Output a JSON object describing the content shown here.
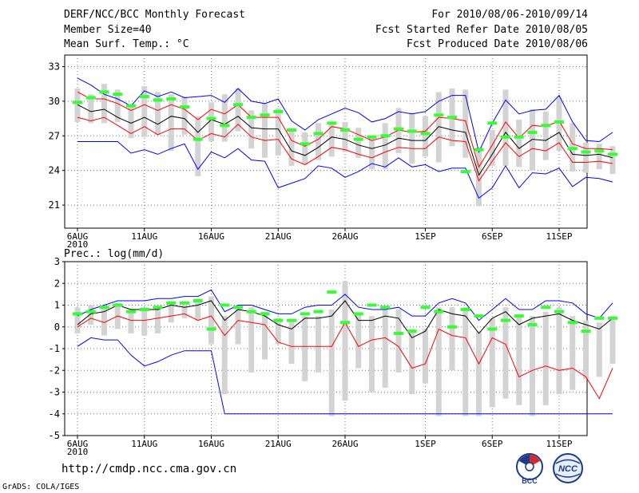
{
  "header": {
    "title": "DERF/NCC/BCC Monthly Forecast",
    "member_size": "Member Size=40",
    "variable": "Mean Surf. Temp.: °C",
    "forecast_period": "For 2010/08/06-2010/09/14",
    "start_date": "Fcst Started Refer Date 2010/08/05",
    "produced_date": "Fcst Produced Date 2010/08/06"
  },
  "footer": {
    "url": "http://cmdp.ncc.cma.gov.cn",
    "credit": "GrADS: COLA/IGES",
    "logo_bcc": "BCC",
    "logo_ncc": "NCC"
  },
  "colors": {
    "envelope": "#0000ff",
    "percentile": "#ff0000",
    "mean": "#000000",
    "box": "#d3d3d3",
    "observed": "#33ff33"
  },
  "chart_data": [
    {
      "type": "line",
      "title": "Mean Surf. Temp.: °C",
      "x_tick_labels": [
        "6AUG\n2010",
        "11AUG",
        "16AUG",
        "21AUG",
        "26AUG",
        "1SEP",
        "6SEP",
        "11SEP"
      ],
      "x_tick_days": [
        1,
        6,
        11,
        16,
        21,
        27,
        32,
        37
      ],
      "x_range": [
        1,
        40
      ],
      "ylim": [
        19,
        34
      ],
      "y_ticks": [
        21,
        24,
        27,
        30,
        33
      ],
      "grid": true,
      "series": [
        {
          "name": "max",
          "values": [
            32,
            31.4,
            30.6,
            30.2,
            29.6,
            30.9,
            30.4,
            30.8,
            30.3,
            30.4,
            30.5,
            29.9,
            31.1,
            30,
            29.8,
            30.2,
            28.3,
            27.5,
            28.4,
            28.9,
            29.4,
            29,
            28.2,
            28.5,
            29.1,
            28.9,
            29.1,
            30,
            30.5,
            30.5,
            25.6,
            28.1,
            30.1,
            28.9,
            29.2,
            29.3,
            30.5,
            28.2,
            26.6,
            26.5,
            27.3
          ]
        },
        {
          "name": "p90",
          "values": [
            30.8,
            30.2,
            30.2,
            29.8,
            29.2,
            29.7,
            29.2,
            29.7,
            29.3,
            28.4,
            29.3,
            28.9,
            29.7,
            28.6,
            28.6,
            28.6,
            26.6,
            26.1,
            26.7,
            27.8,
            27.6,
            27.1,
            26.6,
            26.9,
            27.5,
            27.3,
            27.4,
            28.6,
            28.5,
            28.3,
            24.3,
            26.2,
            28.2,
            26.8,
            27.9,
            27.8,
            28.3,
            26.3,
            25.9,
            25.9,
            25.8
          ]
        },
        {
          "name": "mean",
          "values": [
            29.7,
            29.1,
            29.3,
            28.6,
            28.1,
            28.6,
            28,
            28.7,
            28.5,
            27.3,
            28.4,
            28,
            28.7,
            27.7,
            27.6,
            27.6,
            25.7,
            25.3,
            26,
            26.9,
            26.7,
            26.2,
            25.9,
            26.2,
            26.8,
            26.6,
            26.6,
            27.8,
            27.5,
            27.3,
            23.6,
            25.4,
            27.3,
            25.9,
            26.7,
            26.6,
            27.3,
            25.4,
            25.3,
            25.4,
            25.1
          ]
        },
        {
          "name": "p10",
          "values": [
            28.6,
            28.3,
            28.6,
            27.9,
            27.2,
            27.8,
            27.1,
            27.6,
            27.6,
            26.6,
            27.2,
            26.9,
            28,
            26.9,
            26.6,
            26.7,
            25,
            24.5,
            25.2,
            26,
            25.8,
            25.4,
            25.1,
            25.6,
            26,
            25.9,
            25.9,
            26.9,
            26.6,
            26.5,
            23.1,
            24.8,
            26.4,
            25.2,
            25.9,
            25.7,
            26.4,
            24.7,
            24.7,
            24.8,
            24.6
          ]
        },
        {
          "name": "min",
          "values": [
            26.5,
            26.5,
            26.5,
            26.5,
            25.5,
            25.8,
            25.4,
            25.9,
            26.3,
            24.1,
            25.6,
            25.1,
            25.9,
            24.9,
            24.8,
            22.5,
            22.9,
            23.3,
            24.4,
            24.2,
            23.4,
            23.9,
            24.6,
            24.3,
            25.1,
            24.3,
            24.5,
            23.9,
            24.2,
            24.2,
            21.6,
            22.5,
            24.4,
            22.5,
            23.8,
            23.7,
            24.2,
            22.6,
            23.4,
            23.3,
            23
          ]
        },
        {
          "name": "box_high",
          "values": [
            31.1,
            30.6,
            31.5,
            31,
            29.6,
            31.3,
            30.8,
            30.6,
            30.4,
            28.7,
            29.9,
            30.6,
            31.1,
            29.2,
            29.8,
            29.4,
            27.4,
            27.3,
            28.1,
            28.2,
            28.2,
            27.7,
            26.9,
            28.1,
            29.4,
            29,
            28.7,
            30.8,
            31.1,
            31,
            26,
            27.5,
            31,
            28.4,
            29.3,
            29.1,
            30.3,
            28.1,
            26.4,
            26.3,
            26.1
          ]
        },
        {
          "name": "box_low",
          "values": [
            28.2,
            28.1,
            28.1,
            28.2,
            26.8,
            26.9,
            27.1,
            25.7,
            27.1,
            23.5,
            26.5,
            26.5,
            27.4,
            25.9,
            25.1,
            25.3,
            24.4,
            24.5,
            24.9,
            25.2,
            25.6,
            25.1,
            24.1,
            24.1,
            25.5,
            24.6,
            25.2,
            24.7,
            26.1,
            25.1,
            20.9,
            24.4,
            24.4,
            24.3,
            24,
            24.9,
            25.7,
            23.9,
            23.8,
            24.1,
            23.7
          ]
        },
        {
          "name": "observed",
          "values": [
            29.9,
            30.3,
            30.8,
            30.6,
            29.6,
            30.4,
            30.1,
            30.2,
            29.5,
            26.7,
            28.5,
            27.9,
            29.7,
            28.6,
            28.8,
            29.1,
            27.5,
            26.3,
            27.2,
            28.1,
            27.5,
            26.7,
            26.9,
            27,
            27.6,
            27.4,
            27.2,
            28.8,
            28.6,
            23.9,
            25.8,
            28.1,
            26.9,
            26.9,
            27.3,
            27.9,
            28.2,
            25.9,
            25.6,
            25.7,
            25.4
          ]
        }
      ]
    },
    {
      "type": "line",
      "title": "Prec.: log(mm/d)",
      "x_tick_labels": [
        "6AUG\n2010",
        "11AUG",
        "16AUG",
        "21AUG",
        "26AUG",
        "1SEP",
        "6SEP",
        "11SEP"
      ],
      "x_tick_days": [
        1,
        6,
        11,
        16,
        21,
        27,
        32,
        37
      ],
      "x_range": [
        1,
        40
      ],
      "ylim": [
        -5,
        3
      ],
      "y_ticks": [
        -5,
        -4,
        -3,
        -2,
        -1,
        0,
        1,
        2,
        3
      ],
      "grid": true,
      "series": [
        {
          "name": "max",
          "values": [
            0.5,
            0.8,
            1,
            1.2,
            1.2,
            1.2,
            1.3,
            1.3,
            1.4,
            1.4,
            1.7,
            0.7,
            1,
            1,
            0.8,
            0.6,
            0.6,
            0.9,
            1,
            1,
            1.5,
            0.9,
            0.8,
            0.8,
            0.9,
            0.5,
            0.5,
            1.1,
            1.3,
            1.1,
            0.3,
            0.8,
            1.3,
            0.8,
            0.8,
            1.2,
            1.2,
            1.1,
            0.6,
            0.4,
            1.1
          ]
        },
        {
          "name": "mean",
          "values": [
            0.1,
            0.6,
            0.7,
            1,
            0.8,
            0.8,
            0.8,
            1,
            0.9,
            1,
            1.2,
            0.3,
            0.8,
            0.7,
            0.5,
            0.1,
            -0.1,
            0.4,
            0.4,
            0.5,
            1.2,
            0.3,
            0.3,
            0.5,
            0.4,
            -0.5,
            -0.2,
            0.8,
            0.6,
            0.5,
            -0.3,
            0.4,
            0.7,
            0.1,
            0.4,
            0.5,
            0.6,
            0.3,
            0.1,
            -0.1,
            0.4
          ]
        },
        {
          "name": "p10",
          "values": [
            0,
            0.4,
            0.2,
            0.5,
            0.3,
            0.3,
            0.4,
            0.5,
            0.6,
            0.3,
            0.5,
            -0.4,
            0.3,
            0.2,
            0.1,
            -0.7,
            -0.9,
            -0.9,
            -0.9,
            -0.9,
            0.2,
            -0.9,
            -0.6,
            -0.5,
            -0.9,
            -1.9,
            -1.7,
            -0.1,
            -0.4,
            -0.5,
            -1.7,
            -0.5,
            -0.8,
            -2.3,
            -2,
            -1.8,
            -2,
            -1.9,
            -2.3,
            -3.3,
            -1.9
          ]
        },
        {
          "name": "min",
          "values": [
            -0.9,
            -0.5,
            -0.6,
            -0.6,
            -1.3,
            -1.8,
            -1.6,
            -1.3,
            -1.1,
            -1.1,
            -1.1,
            -4,
            -4,
            -4,
            -4,
            -4,
            -4,
            -4,
            -4,
            -4,
            -4,
            -4,
            -4,
            -4,
            -4,
            -4,
            -4,
            -4,
            -4,
            -4,
            -4,
            -4,
            -4,
            -4,
            -4,
            -4,
            -4,
            -4,
            -4,
            -4,
            -4
          ]
        },
        {
          "name": "box_high",
          "values": [
            0.9,
            1,
            0.9,
            1.1,
            0.8,
            0.9,
            0.9,
            1.1,
            1,
            1.3,
            1.4,
            0.5,
            0.9,
            0.9,
            0.7,
            0.4,
            0.3,
            0.5,
            0.5,
            0.8,
            2.1,
            0.6,
            0.5,
            0.8,
            0.8,
            -0.1,
            -0.1,
            0.9,
            0.9,
            0.9,
            -0.2,
            0.4,
            0.9,
            0.5,
            0.5,
            0.7,
            0.9,
            0.5,
            0.3,
            0.2,
            0.5
          ]
        },
        {
          "name": "box_low",
          "values": [
            -0.3,
            0.1,
            -0.4,
            -0.1,
            -0.3,
            -0.4,
            -0.3,
            0.2,
            0.4,
            0.3,
            -0.8,
            -3.1,
            -0.8,
            -2.1,
            -1.5,
            -0.8,
            -1.7,
            -2.5,
            -2.1,
            -4.1,
            -3.4,
            -1.9,
            -3,
            -2.8,
            -2.1,
            -3.1,
            -2.6,
            -4.1,
            -2,
            -4.1,
            -4.1,
            -3.7,
            -3.3,
            -3.6,
            -4.1,
            -3.6,
            -3.1,
            -2.9,
            -2.4,
            -2.3,
            -1.7
          ]
        },
        {
          "name": "observed",
          "values": [
            0.6,
            0.7,
            0.9,
            1,
            0.7,
            0.8,
            0.9,
            1.1,
            1.1,
            1.2,
            -0.1,
            1,
            0.9,
            0.7,
            0.6,
            0.3,
            0.3,
            0.6,
            0.7,
            1.6,
            0.2,
            0.6,
            1,
            0.9,
            -0.3,
            -0.2,
            0.9,
            0.7,
            0,
            0.8,
            0.5,
            -0.1,
            0.3,
            0.5,
            0.1,
            0.9,
            0.7,
            0.2,
            -0.2,
            0.4,
            0.4
          ]
        }
      ]
    }
  ]
}
